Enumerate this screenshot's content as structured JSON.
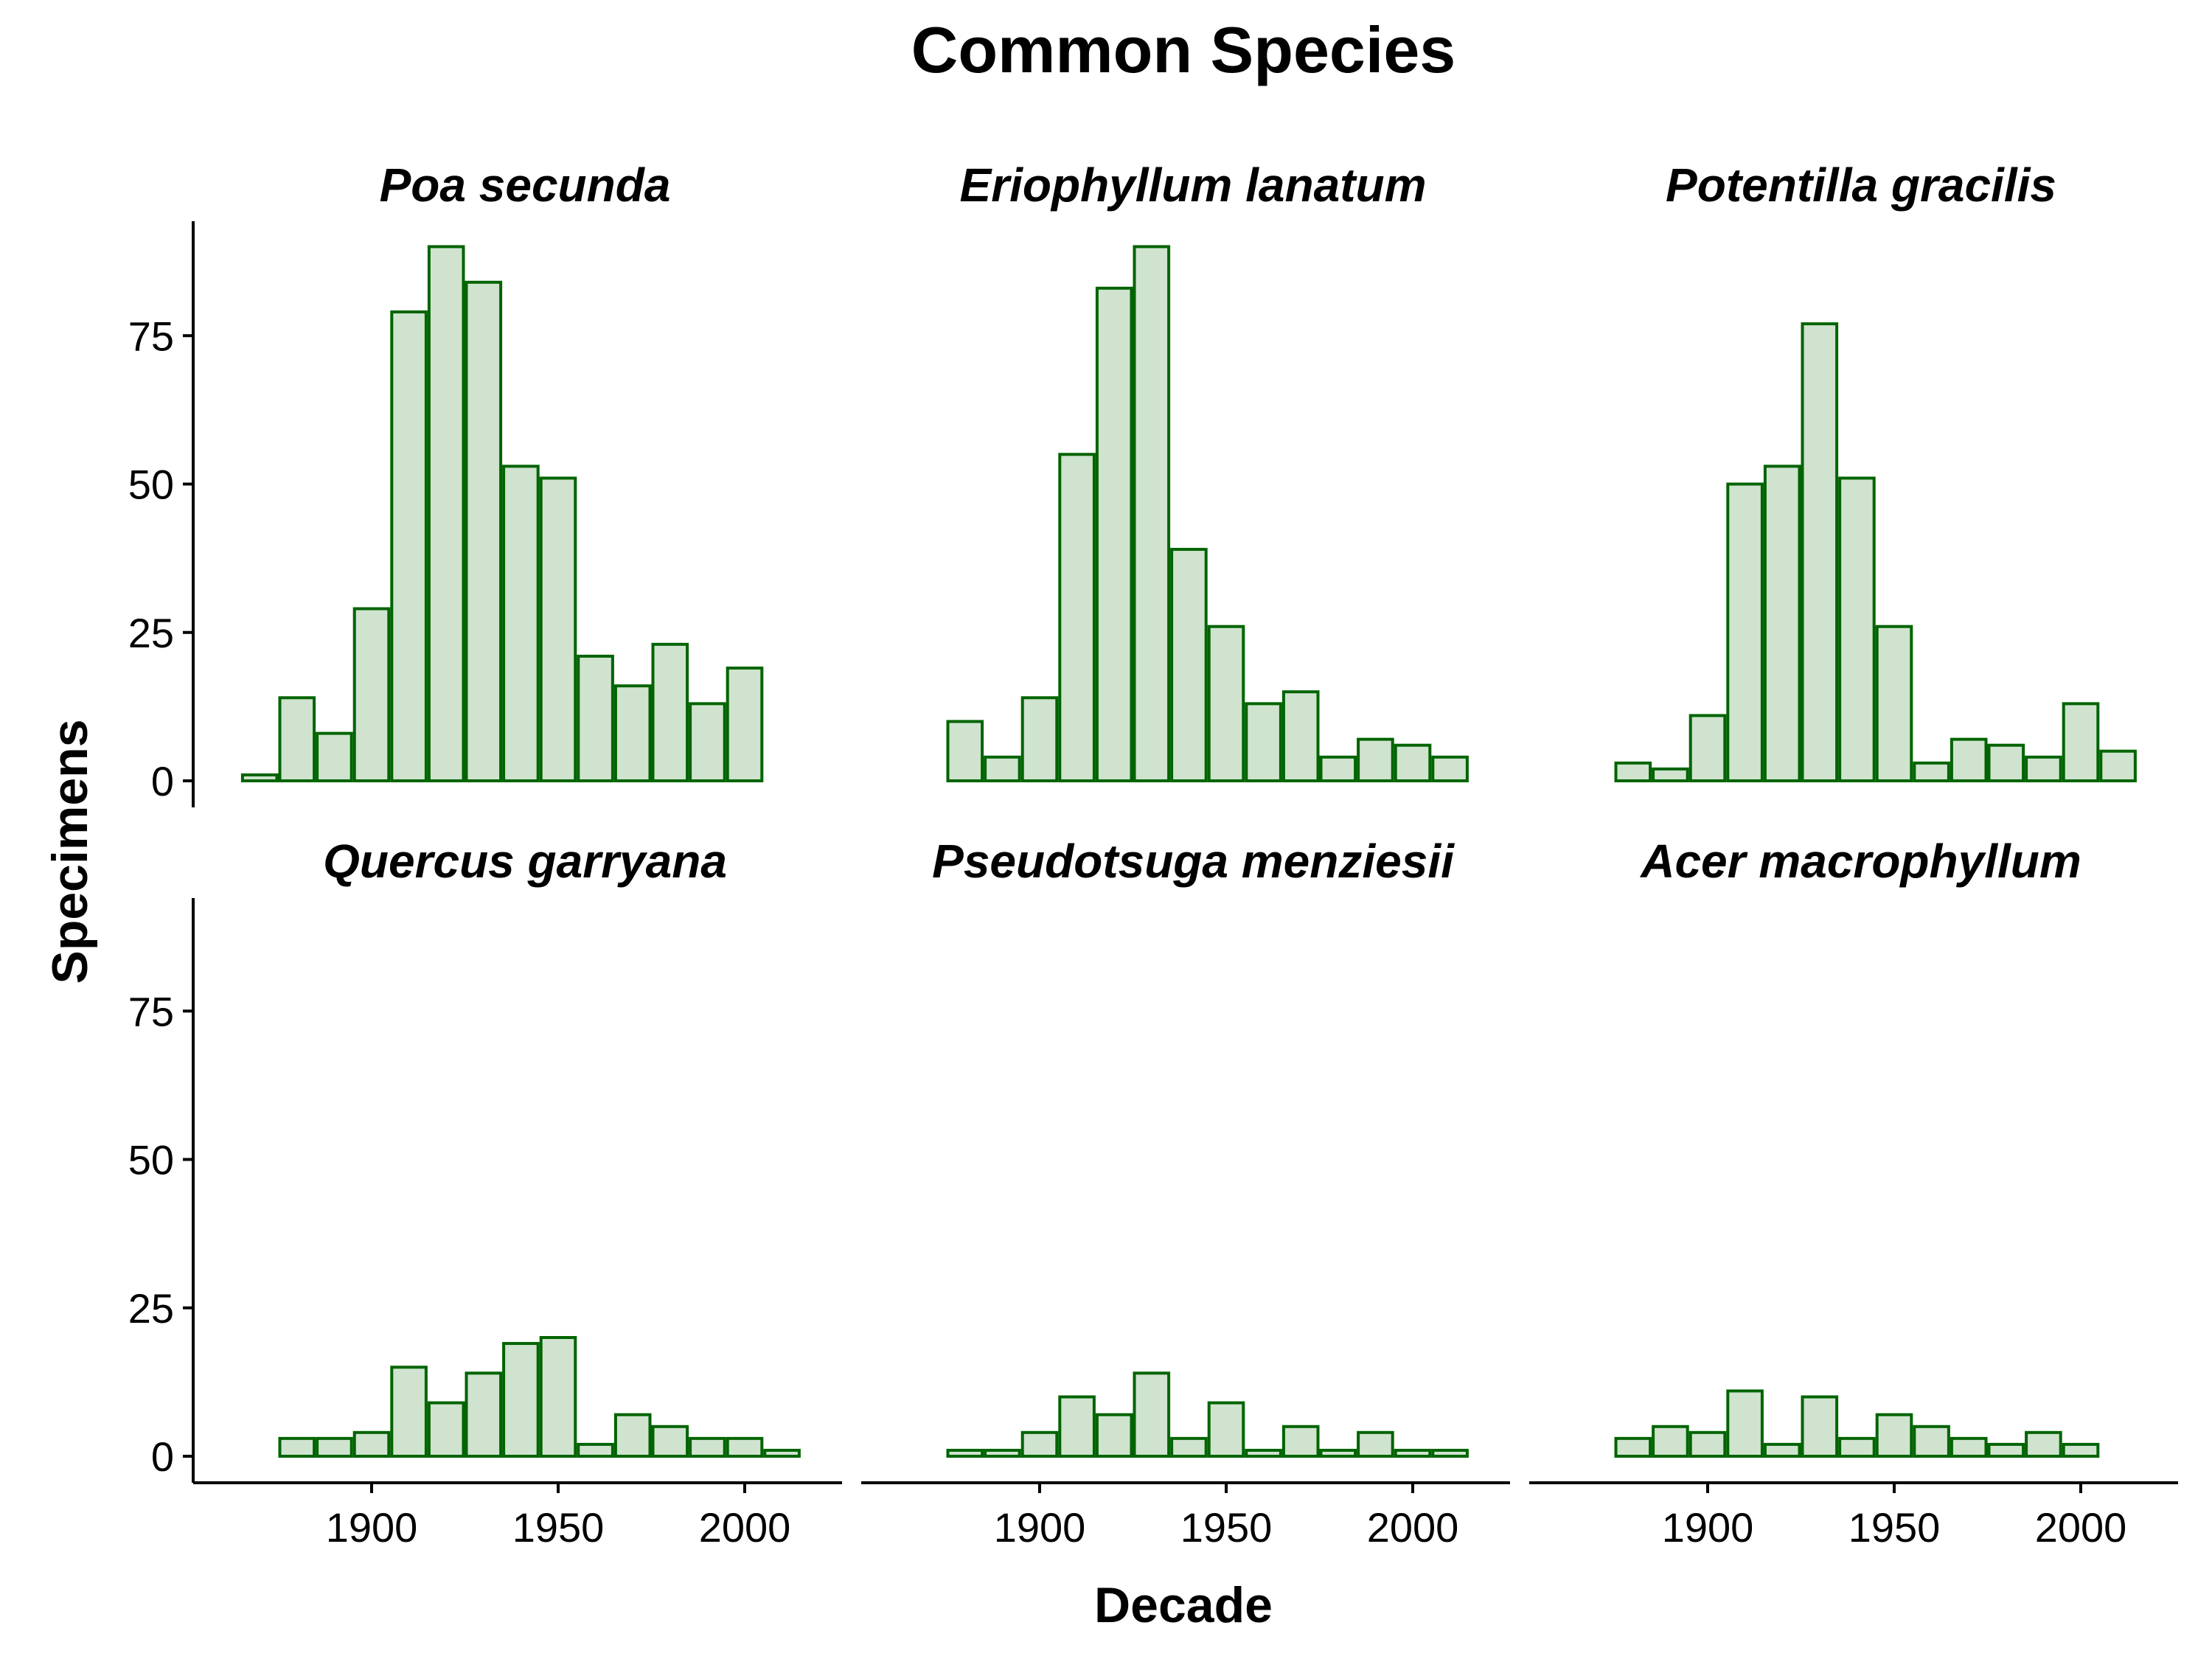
{
  "chart_data": {
    "type": "bar",
    "title": "Common Species",
    "xlabel": "Decade",
    "ylabel": "Specimens",
    "xlim": [
      1860,
      2020
    ],
    "ylim": [
      0,
      95
    ],
    "x_ticks": [
      1900,
      1950,
      2000
    ],
    "x_tick_labels": [
      "1900",
      "1950",
      "2000"
    ],
    "y_ticks": [
      0,
      25,
      50,
      75
    ],
    "y_tick_labels": [
      "0",
      "25",
      "50",
      "75"
    ],
    "bin_width": 10,
    "bar_fill": "#cfe3cf",
    "bar_stroke": "#006400",
    "grid": false,
    "facets": [
      {
        "name": "Poa secunda",
        "x": [
          1870,
          1880,
          1890,
          1900,
          1910,
          1920,
          1930,
          1940,
          1950,
          1960,
          1970,
          1980,
          1990,
          2000
        ],
        "values": [
          1,
          14,
          8,
          29,
          79,
          90,
          84,
          53,
          51,
          21,
          16,
          23,
          13,
          19
        ]
      },
      {
        "name": "Eriophyllum lanatum",
        "x": [
          1880,
          1890,
          1900,
          1910,
          1920,
          1930,
          1940,
          1950,
          1960,
          1970,
          1980,
          1990,
          2000,
          2010
        ],
        "values": [
          10,
          4,
          14,
          55,
          83,
          90,
          39,
          26,
          13,
          15,
          4,
          7,
          6,
          4
        ]
      },
      {
        "name": "Potentilla gracilis",
        "x": [
          1880,
          1890,
          1900,
          1910,
          1920,
          1930,
          1940,
          1950,
          1960,
          1970,
          1980,
          1990,
          2000,
          2010
        ],
        "values": [
          3,
          2,
          11,
          50,
          53,
          77,
          51,
          26,
          3,
          7,
          6,
          4,
          13,
          5
        ]
      },
      {
        "name": "Quercus garryana",
        "x": [
          1880,
          1890,
          1900,
          1910,
          1920,
          1930,
          1940,
          1950,
          1960,
          1970,
          1980,
          1990,
          2000,
          2010
        ],
        "values": [
          3,
          3,
          4,
          15,
          9,
          14,
          19,
          20,
          2,
          7,
          5,
          3,
          3,
          1
        ]
      },
      {
        "name": "Pseudotsuga menziesii",
        "x": [
          1880,
          1890,
          1900,
          1910,
          1920,
          1930,
          1940,
          1950,
          1960,
          1970,
          1980,
          1990,
          2000,
          2010
        ],
        "values": [
          1,
          1,
          4,
          10,
          7,
          14,
          3,
          9,
          1,
          5,
          1,
          4,
          1,
          1
        ]
      },
      {
        "name": "Acer macrophyllum",
        "x": [
          1880,
          1890,
          1900,
          1910,
          1920,
          1930,
          1940,
          1950,
          1960,
          1970,
          1980,
          1990,
          2000
        ],
        "values": [
          3,
          5,
          4,
          11,
          2,
          10,
          3,
          7,
          5,
          3,
          2,
          4,
          2
        ]
      }
    ]
  }
}
